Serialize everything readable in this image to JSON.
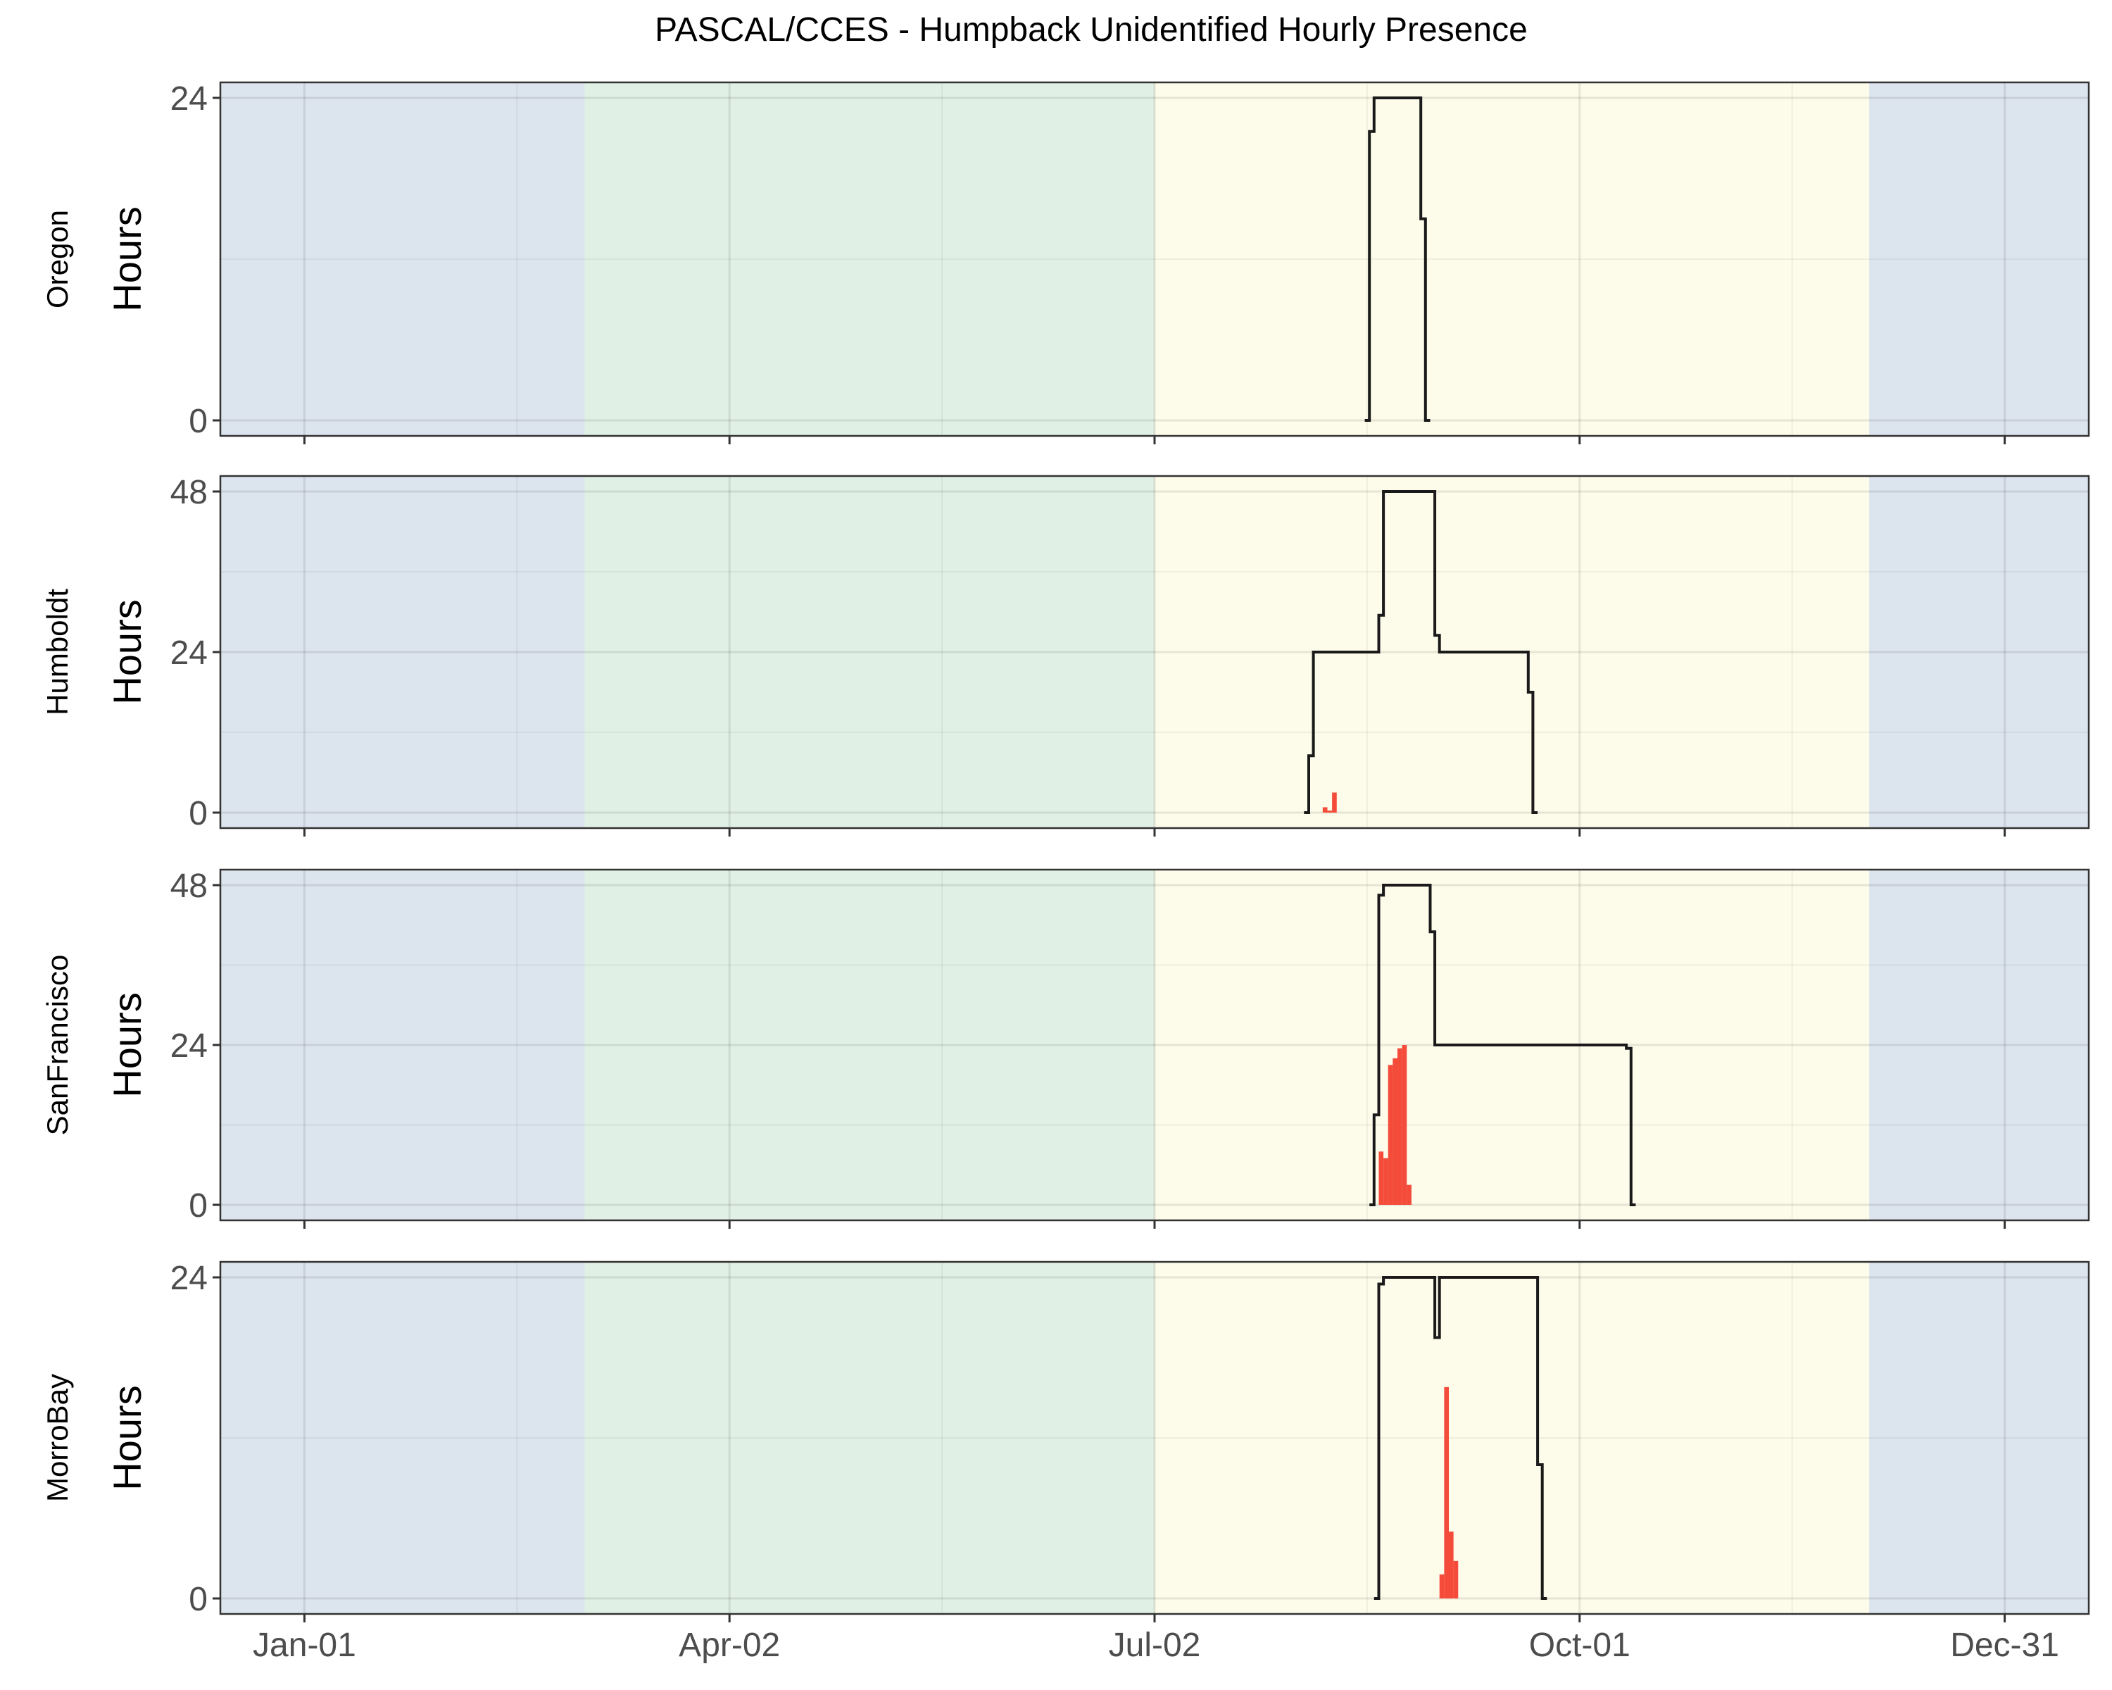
{
  "chart_data": {
    "type": "line",
    "title": "PASCAL/CCES - Humpback Unidentified Hourly Presence",
    "ylabel": "Hours",
    "xlabel": "",
    "x_ticks": [
      "Jan-01",
      "Apr-02",
      "Jul-02",
      "Oct-01",
      "Dec-31"
    ],
    "x_tick_days": [
      1,
      92,
      183,
      274,
      365
    ],
    "xlim_days": [
      -17,
      383
    ],
    "grid": true,
    "legend": "none",
    "seasons": [
      {
        "name": "winter",
        "start_day": -17,
        "end_day": 61,
        "color": "#dce4ee"
      },
      {
        "name": "spring",
        "start_day": 61,
        "end_day": 183,
        "color": "#e1f0e5"
      },
      {
        "name": "summer",
        "start_day": 183,
        "end_day": 336,
        "color": "#fdfbea"
      },
      {
        "name": "winter",
        "start_day": 336,
        "end_day": 383,
        "color": "#dce4ee"
      }
    ],
    "colors": {
      "effort_line": "#1a1a1a",
      "presence_bars": "#f44b3a"
    },
    "panels": [
      {
        "name": "Oregon",
        "ylim": [
          0,
          24
        ],
        "y_ticks": [
          0,
          24
        ],
        "effort_line": [
          [
            228,
            0
          ],
          [
            229,
            0
          ],
          [
            229,
            21.5
          ],
          [
            230,
            21.5
          ],
          [
            230,
            24
          ],
          [
            240,
            24
          ],
          [
            240,
            15
          ],
          [
            241,
            15
          ],
          [
            241,
            0
          ],
          [
            242,
            0
          ]
        ],
        "presence_bars": []
      },
      {
        "name": "Humboldt",
        "ylim": [
          0,
          48
        ],
        "y_ticks": [
          0,
          24,
          48
        ],
        "effort_line": [
          [
            215,
            0
          ],
          [
            216,
            0
          ],
          [
            216,
            8.5
          ],
          [
            217,
            8.5
          ],
          [
            217,
            24
          ],
          [
            231,
            24
          ],
          [
            231,
            29.5
          ],
          [
            232,
            29.5
          ],
          [
            232,
            48
          ],
          [
            243,
            48
          ],
          [
            243,
            26.5
          ],
          [
            244,
            26.5
          ],
          [
            244,
            24
          ],
          [
            263,
            24
          ],
          [
            263,
            18
          ],
          [
            264,
            18
          ],
          [
            264,
            0
          ],
          [
            265,
            0
          ]
        ],
        "presence_bars": [
          [
            219,
            0.8
          ],
          [
            220,
            0.3
          ],
          [
            221,
            3
          ]
        ]
      },
      {
        "name": "SanFrancisco",
        "ylim": [
          0,
          48
        ],
        "y_ticks": [
          0,
          24,
          48
        ],
        "effort_line": [
          [
            229,
            0
          ],
          [
            230,
            0
          ],
          [
            230,
            13.5
          ],
          [
            231,
            13.5
          ],
          [
            231,
            46.5
          ],
          [
            232,
            46.5
          ],
          [
            232,
            48
          ],
          [
            242,
            48
          ],
          [
            242,
            41
          ],
          [
            243,
            41
          ],
          [
            243,
            24
          ],
          [
            284,
            24
          ],
          [
            284,
            23.5
          ],
          [
            285,
            23.5
          ],
          [
            285,
            0
          ],
          [
            286,
            0
          ]
        ],
        "presence_bars": [
          [
            231,
            8
          ],
          [
            232,
            7
          ],
          [
            233,
            21
          ],
          [
            234,
            22
          ],
          [
            235,
            23.5
          ],
          [
            236,
            24
          ],
          [
            237,
            3
          ]
        ]
      },
      {
        "name": "MorroBay",
        "ylim": [
          0,
          24
        ],
        "y_ticks": [
          0,
          24
        ],
        "effort_line": [
          [
            230,
            0
          ],
          [
            231,
            0
          ],
          [
            231,
            23.5
          ],
          [
            232,
            23.5
          ],
          [
            232,
            24
          ],
          [
            243,
            24
          ],
          [
            243,
            19.5
          ],
          [
            244,
            19.5
          ],
          [
            244,
            24
          ],
          [
            265,
            24
          ],
          [
            265,
            10
          ],
          [
            266,
            10
          ],
          [
            266,
            0
          ],
          [
            267,
            0
          ]
        ],
        "presence_bars": [
          [
            244,
            1.8
          ],
          [
            245,
            15.8
          ],
          [
            246,
            5
          ],
          [
            247,
            2.8
          ]
        ]
      }
    ]
  }
}
